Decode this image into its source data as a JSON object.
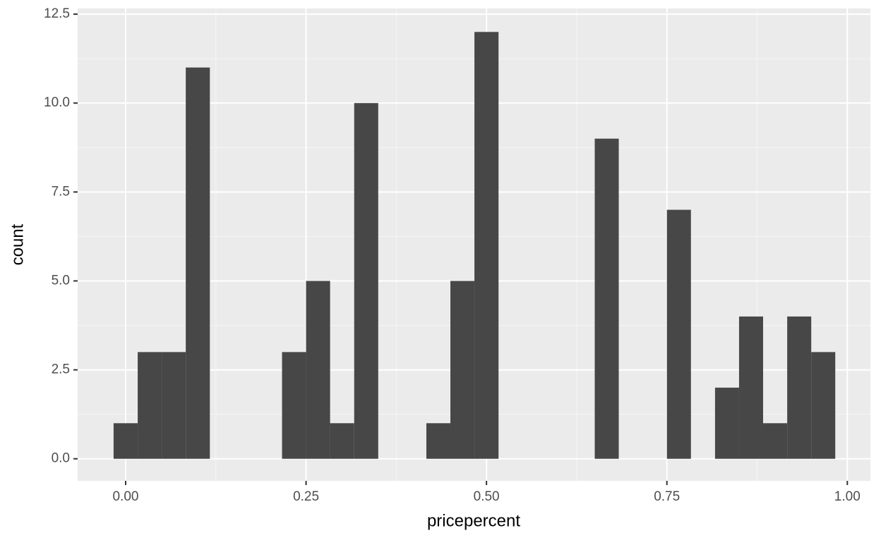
{
  "chart_data": {
    "type": "histogram",
    "x_label": "pricepercent",
    "y_label": "count",
    "bins": [
      -0.0167,
      0.0167,
      0.05,
      0.0833,
      0.1167,
      0.15,
      0.1833,
      0.2167,
      0.25,
      0.2833,
      0.3167,
      0.35,
      0.3833,
      0.4167,
      0.45,
      0.4833,
      0.5167,
      0.55,
      0.5833,
      0.6167,
      0.65,
      0.6833,
      0.7167,
      0.75,
      0.7833,
      0.8167,
      0.85,
      0.8833,
      0.9167,
      0.95,
      0.9833
    ],
    "values": [
      1,
      3,
      3,
      11,
      0,
      0,
      0,
      3,
      5,
      1,
      10,
      0,
      0,
      1,
      5,
      12,
      0,
      0,
      0,
      0,
      9,
      0,
      0,
      7,
      0,
      2,
      4,
      1,
      4,
      3
    ],
    "color": "#474747",
    "xlim": [
      -0.0665,
      1.032
    ],
    "ylim": [
      -0.62,
      12.66
    ],
    "xticks": [
      {
        "value": 0,
        "label": "0.00"
      },
      {
        "value": 0.25,
        "label": "0.25"
      },
      {
        "value": 0.5,
        "label": "0.50"
      },
      {
        "value": 0.75,
        "label": "0.75"
      },
      {
        "value": 1,
        "label": "1.00"
      }
    ],
    "yticks": [
      {
        "value": 0,
        "label": "0.0"
      },
      2.5,
      {
        "value": 5,
        "label": "5.0"
      },
      7.5,
      {
        "value": 10,
        "label": "10.0"
      },
      12.5
    ],
    "grid": true
  }
}
